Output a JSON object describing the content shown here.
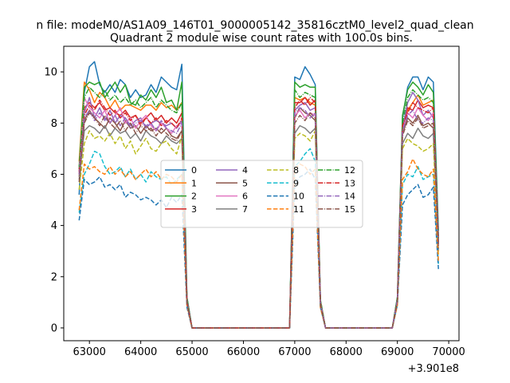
{
  "chart_data": {
    "type": "line",
    "suptitle": "n file: modeM0/AS1A09_146T01_9000005142_35816cztM0_level2_quad_clean",
    "title": "Quadrant 2 module wise count rates with 100.0s bins.",
    "xlabel": "",
    "ylabel": "",
    "x_offset_label": "+3.901e8",
    "xlim": [
      62500,
      70200
    ],
    "ylim": [
      -0.5,
      11
    ],
    "xticks": [
      "63000",
      "64000",
      "65000",
      "66000",
      "67000",
      "68000",
      "69000",
      "70000"
    ],
    "yticks": [
      "0",
      "2",
      "4",
      "6",
      "8",
      "10"
    ],
    "grid": false,
    "legend": {
      "placement": "center",
      "columns": 4
    },
    "x": [
      62800,
      62900,
      63000,
      63100,
      63200,
      63300,
      63400,
      63500,
      63600,
      63700,
      63800,
      63900,
      64000,
      64100,
      64200,
      64300,
      64400,
      64500,
      64600,
      64700,
      64800,
      64900,
      65000,
      65100,
      65200,
      65300,
      65400,
      65500,
      65600,
      65700,
      65800,
      65900,
      66000,
      66100,
      66200,
      66300,
      66400,
      66500,
      66600,
      66700,
      66800,
      66900,
      67000,
      67100,
      67200,
      67300,
      67400,
      67500,
      67600,
      67700,
      67800,
      67900,
      68000,
      68100,
      68200,
      68300,
      68400,
      68500,
      68600,
      68700,
      68800,
      68900,
      69000,
      69100,
      69200,
      69300,
      69400,
      69500,
      69600,
      69700,
      69800
    ],
    "series": [
      {
        "name": "0",
        "color": "#1f77b4",
        "dash": "solid",
        "values": [
          5.2,
          9.2,
          10.2,
          10.4,
          9.5,
          9.2,
          9.5,
          9.2,
          9.7,
          9.5,
          9.0,
          9.3,
          9.0,
          9.1,
          9.5,
          9.2,
          9.8,
          9.6,
          9.4,
          9.3,
          10.3,
          1.2,
          0,
          0,
          0,
          0,
          0,
          0,
          0,
          0,
          0,
          0,
          0,
          0,
          0,
          0,
          0,
          0,
          0,
          0,
          0,
          0,
          9.8,
          9.7,
          10.2,
          9.9,
          9.5,
          1.0,
          0,
          0,
          0,
          0,
          0,
          0,
          0,
          0,
          0,
          0,
          0,
          0,
          0,
          0,
          1.2,
          8.2,
          9.4,
          9.8,
          9.8,
          9.3,
          9.8,
          9.6,
          3.8
        ]
      },
      {
        "name": "1",
        "color": "#ff7f0e",
        "dash": "solid",
        "values": [
          6.5,
          9.6,
          9.3,
          8.8,
          9.2,
          9.0,
          8.6,
          8.9,
          8.5,
          8.7,
          8.7,
          8.6,
          8.5,
          8.7,
          8.7,
          8.5,
          8.8,
          8.6,
          8.7,
          8.5,
          8.8,
          1.1,
          0,
          0,
          0,
          0,
          0,
          0,
          0,
          0,
          0,
          0,
          0,
          0,
          0,
          0,
          0,
          0,
          0,
          0,
          0,
          0,
          9.0,
          8.9,
          9.0,
          8.8,
          8.7,
          1.0,
          0,
          0,
          0,
          0,
          0,
          0,
          0,
          0,
          0,
          0,
          0,
          0,
          0,
          0,
          1.1,
          7.8,
          8.5,
          8.8,
          9.1,
          8.7,
          8.8,
          8.9,
          3.2
        ]
      },
      {
        "name": "2",
        "color": "#2ca02c",
        "dash": "solid",
        "values": [
          6.3,
          9.4,
          9.6,
          9.5,
          9.6,
          9.0,
          9.3,
          9.6,
          9.2,
          9.5,
          8.8,
          8.7,
          9.1,
          8.9,
          9.3,
          9.0,
          9.4,
          8.8,
          8.9,
          8.5,
          9.6,
          1.2,
          0,
          0,
          0,
          0,
          0,
          0,
          0,
          0,
          0,
          0,
          0,
          0,
          0,
          0,
          0,
          0,
          0,
          0,
          0,
          0,
          9.6,
          9.4,
          9.5,
          9.4,
          9.4,
          1.1,
          0,
          0,
          0,
          0,
          0,
          0,
          0,
          0,
          0,
          0,
          0,
          0,
          0,
          0,
          1.2,
          8.3,
          9.3,
          9.6,
          9.4,
          9.1,
          9.5,
          9.2,
          3.6
        ]
      },
      {
        "name": "3",
        "color": "#d62728",
        "dash": "solid",
        "values": [
          6.0,
          8.6,
          8.8,
          8.6,
          8.8,
          8.5,
          8.6,
          8.4,
          8.3,
          8.5,
          8.2,
          8.3,
          8.0,
          8.2,
          8.4,
          8.1,
          8.3,
          8.0,
          8.2,
          8.0,
          8.4,
          1.1,
          0,
          0,
          0,
          0,
          0,
          0,
          0,
          0,
          0,
          0,
          0,
          0,
          0,
          0,
          0,
          0,
          0,
          0,
          0,
          0,
          8.8,
          8.8,
          9.0,
          8.7,
          8.9,
          1.0,
          0,
          0,
          0,
          0,
          0,
          0,
          0,
          0,
          0,
          0,
          0,
          0,
          0,
          0,
          1.1,
          7.8,
          8.6,
          8.5,
          8.9,
          8.6,
          8.7,
          8.6,
          3.4
        ]
      },
      {
        "name": "4",
        "color": "#9467bd",
        "dash": "solid",
        "values": [
          6.2,
          8.4,
          9.0,
          8.2,
          8.6,
          8.1,
          8.5,
          8.0,
          8.3,
          8.2,
          7.9,
          8.1,
          8.2,
          7.8,
          8.0,
          8.1,
          8.0,
          7.9,
          8.0,
          7.8,
          8.1,
          1.1,
          0,
          0,
          0,
          0,
          0,
          0,
          0,
          0,
          0,
          0,
          0,
          0,
          0,
          0,
          0,
          0,
          0,
          0,
          0,
          0,
          8.5,
          8.7,
          8.8,
          8.5,
          8.6,
          1.0,
          0,
          0,
          0,
          0,
          0,
          0,
          0,
          0,
          0,
          0,
          0,
          0,
          0,
          0,
          1.1,
          7.8,
          8.8,
          9.2,
          8.9,
          8.3,
          8.5,
          8.2,
          3.5
        ]
      },
      {
        "name": "5",
        "color": "#8c564b",
        "dash": "solid",
        "values": [
          5.9,
          8.1,
          8.5,
          8.2,
          8.0,
          7.8,
          8.2,
          8.0,
          7.7,
          8.1,
          7.8,
          7.9,
          7.6,
          7.9,
          7.7,
          7.8,
          7.6,
          7.8,
          7.5,
          7.4,
          7.7,
          1.0,
          0,
          0,
          0,
          0,
          0,
          0,
          0,
          0,
          0,
          0,
          0,
          0,
          0,
          0,
          0,
          0,
          0,
          0,
          0,
          0,
          8.2,
          8.6,
          8.4,
          8.3,
          8.1,
          1.0,
          0,
          0,
          0,
          0,
          0,
          0,
          0,
          0,
          0,
          0,
          0,
          0,
          0,
          0,
          1.1,
          7.6,
          8.2,
          8.0,
          8.3,
          7.9,
          8.0,
          7.8,
          3.2
        ]
      },
      {
        "name": "6",
        "color": "#e377c2",
        "dash": "solid",
        "values": [
          6.1,
          9.0,
          8.6,
          8.4,
          8.2,
          8.5,
          8.0,
          8.3,
          8.6,
          8.0,
          8.2,
          7.8,
          8.1,
          8.3,
          7.9,
          7.7,
          8.0,
          7.8,
          7.6,
          7.9,
          8.0,
          1.0,
          0,
          0,
          0,
          0,
          0,
          0,
          0,
          0,
          0,
          0,
          0,
          0,
          0,
          0,
          0,
          0,
          0,
          0,
          0,
          0,
          8.3,
          8.5,
          8.2,
          8.4,
          8.3,
          1.0,
          0,
          0,
          0,
          0,
          0,
          0,
          0,
          0,
          0,
          0,
          0,
          0,
          0,
          0,
          1.1,
          7.7,
          8.4,
          8.2,
          8.6,
          8.3,
          8.1,
          8.4,
          3.3
        ]
      },
      {
        "name": "7",
        "color": "#7f7f7f",
        "dash": "solid",
        "values": [
          5.8,
          7.7,
          7.9,
          7.8,
          7.6,
          7.9,
          7.5,
          7.8,
          7.6,
          7.7,
          7.4,
          7.6,
          7.3,
          7.7,
          7.5,
          7.4,
          7.2,
          7.5,
          7.3,
          7.2,
          7.4,
          1.0,
          0,
          0,
          0,
          0,
          0,
          0,
          0,
          0,
          0,
          0,
          0,
          0,
          0,
          0,
          0,
          0,
          0,
          0,
          0,
          0,
          7.6,
          7.9,
          7.8,
          7.6,
          7.8,
          0.9,
          0,
          0,
          0,
          0,
          0,
          0,
          0,
          0,
          0,
          0,
          0,
          0,
          0,
          0,
          1.0,
          7.2,
          7.6,
          7.4,
          7.8,
          7.5,
          7.4,
          7.6,
          3.0
        ]
      },
      {
        "name": "8",
        "color": "#bcbd22",
        "dash": "dashed",
        "values": [
          5.4,
          7.2,
          7.7,
          7.4,
          7.5,
          7.3,
          7.6,
          7.2,
          7.5,
          7.0,
          7.3,
          6.8,
          7.1,
          7.4,
          7.0,
          6.9,
          7.2,
          7.3,
          7.0,
          6.8,
          7.5,
          0.9,
          0,
          0,
          0,
          0,
          0,
          0,
          0,
          0,
          0,
          0,
          0,
          0,
          0,
          0,
          0,
          0,
          0,
          0,
          0,
          0,
          7.4,
          7.6,
          7.5,
          7.3,
          7.7,
          0.9,
          0,
          0,
          0,
          0,
          0,
          0,
          0,
          0,
          0,
          0,
          0,
          0,
          0,
          0,
          1.0,
          7.0,
          7.4,
          7.2,
          7.1,
          6.9,
          7.0,
          7.2,
          2.8
        ]
      },
      {
        "name": "9",
        "color": "#17becf",
        "dash": "dashed",
        "values": [
          4.5,
          6.0,
          6.4,
          6.9,
          6.8,
          6.3,
          6.0,
          6.1,
          6.3,
          5.9,
          6.2,
          5.8,
          6.0,
          5.7,
          6.1,
          5.9,
          5.8,
          5.9,
          5.6,
          5.8,
          6.0,
          0.9,
          0,
          0,
          0,
          0,
          0,
          0,
          0,
          0,
          0,
          0,
          0,
          0,
          0,
          0,
          0,
          0,
          0,
          0,
          0,
          0,
          6.3,
          6.5,
          6.8,
          7.0,
          6.5,
          0.8,
          0,
          0,
          0,
          0,
          0,
          0,
          0,
          0,
          0,
          0,
          0,
          0,
          0,
          0,
          0.9,
          5.6,
          6.0,
          5.9,
          6.3,
          5.8,
          5.9,
          6.0,
          2.5
        ]
      },
      {
        "name": "10",
        "color": "#1f77b4",
        "dash": "dashed",
        "values": [
          4.2,
          5.8,
          5.6,
          5.7,
          5.9,
          5.5,
          5.6,
          5.4,
          5.6,
          5.1,
          5.3,
          5.2,
          5.0,
          5.1,
          5.0,
          4.8,
          5.0,
          4.7,
          5.1,
          4.9,
          5.2,
          0.8,
          0,
          0,
          0,
          0,
          0,
          0,
          0,
          0,
          0,
          0,
          0,
          0,
          0,
          0,
          0,
          0,
          0,
          0,
          0,
          0,
          5.6,
          5.9,
          6.0,
          6.2,
          5.8,
          0.8,
          0,
          0,
          0,
          0,
          0,
          0,
          0,
          0,
          0,
          0,
          0,
          0,
          0,
          0,
          0.9,
          4.8,
          5.2,
          5.4,
          5.6,
          5.1,
          5.2,
          5.5,
          2.3
        ]
      },
      {
        "name": "11",
        "color": "#ff7f0e",
        "dash": "dashed",
        "values": [
          4.6,
          6.4,
          6.2,
          6.3,
          6.1,
          6.0,
          6.3,
          6.0,
          6.2,
          5.9,
          6.1,
          5.8,
          6.0,
          6.2,
          5.9,
          6.1,
          5.8,
          6.0,
          5.9,
          5.7,
          6.0,
          0.9,
          0,
          0,
          0,
          0,
          0,
          0,
          0,
          0,
          0,
          0,
          0,
          0,
          0,
          0,
          0,
          0,
          0,
          0,
          0,
          0,
          6.2,
          6.4,
          6.3,
          6.0,
          6.2,
          0.8,
          0,
          0,
          0,
          0,
          0,
          0,
          0,
          0,
          0,
          0,
          0,
          0,
          0,
          0,
          0.9,
          5.8,
          6.1,
          6.6,
          6.2,
          6.0,
          5.9,
          6.2,
          2.6
        ]
      },
      {
        "name": "12",
        "color": "#2ca02c",
        "dash": "dashdot",
        "values": [
          6.2,
          9.0,
          9.4,
          9.2,
          9.0,
          9.3,
          8.9,
          9.1,
          8.8,
          9.0,
          8.7,
          8.9,
          8.6,
          8.8,
          9.0,
          8.6,
          8.9,
          8.7,
          8.5,
          8.4,
          8.8,
          1.1,
          0,
          0,
          0,
          0,
          0,
          0,
          0,
          0,
          0,
          0,
          0,
          0,
          0,
          0,
          0,
          0,
          0,
          0,
          0,
          0,
          9.3,
          9.0,
          9.2,
          9.1,
          9.0,
          1.1,
          0,
          0,
          0,
          0,
          0,
          0,
          0,
          0,
          0,
          0,
          0,
          0,
          0,
          0,
          1.2,
          8.0,
          9.0,
          9.3,
          9.1,
          8.9,
          9.0,
          8.8,
          3.4
        ]
      },
      {
        "name": "13",
        "color": "#d62728",
        "dash": "dashdot",
        "values": [
          6.1,
          8.3,
          8.7,
          8.5,
          8.9,
          8.6,
          8.3,
          8.5,
          8.2,
          8.4,
          8.1,
          8.3,
          7.9,
          8.2,
          8.0,
          8.2,
          7.9,
          8.1,
          8.0,
          7.8,
          8.2,
          1.0,
          0,
          0,
          0,
          0,
          0,
          0,
          0,
          0,
          0,
          0,
          0,
          0,
          0,
          0,
          0,
          0,
          0,
          0,
          0,
          0,
          8.6,
          8.9,
          8.7,
          9.0,
          8.8,
          1.0,
          0,
          0,
          0,
          0,
          0,
          0,
          0,
          0,
          0,
          0,
          0,
          0,
          0,
          0,
          1.1,
          7.9,
          8.4,
          8.8,
          8.6,
          8.5,
          8.4,
          8.6,
          3.3
        ]
      },
      {
        "name": "14",
        "color": "#9467bd",
        "dash": "dashdot",
        "values": [
          6.0,
          8.2,
          8.5,
          8.1,
          8.4,
          8.2,
          8.0,
          8.3,
          7.9,
          8.2,
          7.8,
          8.0,
          8.1,
          7.9,
          8.0,
          7.7,
          8.1,
          7.8,
          7.7,
          7.6,
          8.0,
          1.0,
          0,
          0,
          0,
          0,
          0,
          0,
          0,
          0,
          0,
          0,
          0,
          0,
          0,
          0,
          0,
          0,
          0,
          0,
          0,
          0,
          8.4,
          8.6,
          8.5,
          8.2,
          8.4,
          1.0,
          0,
          0,
          0,
          0,
          0,
          0,
          0,
          0,
          0,
          0,
          0,
          0,
          0,
          0,
          1.1,
          7.7,
          8.3,
          8.5,
          8.1,
          8.0,
          8.2,
          8.1,
          3.2
        ]
      },
      {
        "name": "15",
        "color": "#8c564b",
        "dash": "dashdot",
        "values": [
          5.7,
          8.0,
          8.4,
          8.2,
          7.9,
          8.3,
          8.0,
          7.8,
          8.1,
          7.7,
          8.0,
          7.6,
          7.9,
          7.7,
          7.8,
          7.5,
          7.8,
          7.6,
          7.4,
          7.3,
          7.7,
          1.0,
          0,
          0,
          0,
          0,
          0,
          0,
          0,
          0,
          0,
          0,
          0,
          0,
          0,
          0,
          0,
          0,
          0,
          0,
          0,
          0,
          8.0,
          8.3,
          8.1,
          8.4,
          8.2,
          0.9,
          0,
          0,
          0,
          0,
          0,
          0,
          0,
          0,
          0,
          0,
          0,
          0,
          0,
          0,
          1.0,
          7.5,
          8.1,
          7.9,
          8.2,
          7.8,
          7.9,
          8.0,
          3.1
        ]
      }
    ]
  }
}
